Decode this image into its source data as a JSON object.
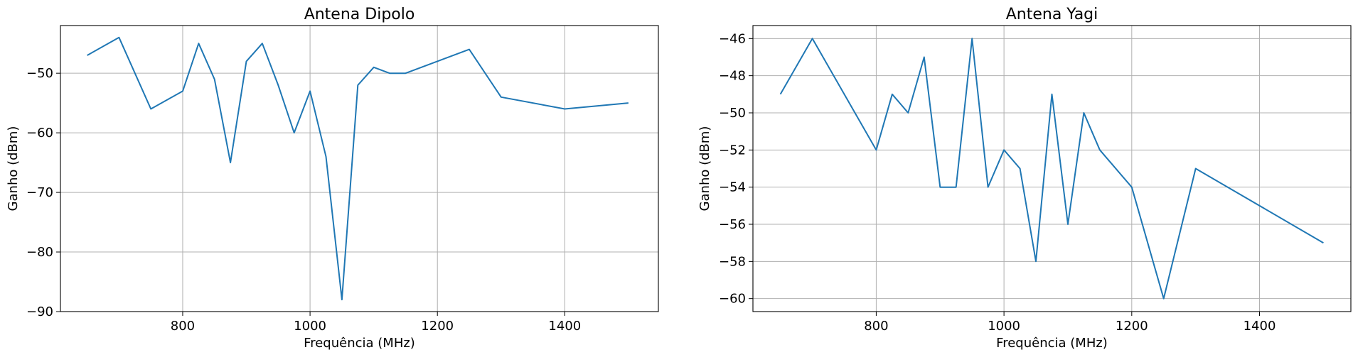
{
  "chart_data": [
    {
      "type": "line",
      "title": "Antena Dipolo",
      "xlabel": "Frequência (MHz)",
      "ylabel": "Ganho (dBm)",
      "xlim": [
        608,
        1547
      ],
      "ylim": [
        -90,
        -42
      ],
      "grid": true,
      "xticks": [
        800,
        1000,
        1200,
        1400
      ],
      "xtick_labels": [
        "800",
        "1000",
        "1200",
        "1400"
      ],
      "yticks": [
        -90,
        -80,
        -70,
        -60,
        -50
      ],
      "ytick_labels": [
        "−90",
        "−80",
        "−70",
        "−60",
        "−50"
      ],
      "series": [
        {
          "color": "#1f77b4",
          "x": [
            650,
            700,
            750,
            800,
            825,
            850,
            875,
            900,
            925,
            950,
            975,
            1000,
            1025,
            1050,
            1075,
            1100,
            1125,
            1150,
            1250,
            1300,
            1400,
            1500
          ],
          "y": [
            -47,
            -44,
            -56,
            -53,
            -45,
            -51,
            -65,
            -48,
            -45,
            -52,
            -60,
            -53,
            -64,
            -88,
            -52,
            -49,
            -50,
            -50,
            -46,
            -54,
            -56,
            -55
          ]
        }
      ]
    },
    {
      "type": "line",
      "title": "Antena Yagi",
      "xlabel": "Frequência (MHz)",
      "ylabel": "Ganho (dBm)",
      "xlim": [
        607,
        1543
      ],
      "ylim": [
        -60.7,
        -45.3
      ],
      "grid": true,
      "xticks": [
        800,
        1000,
        1200,
        1400
      ],
      "xtick_labels": [
        "800",
        "1000",
        "1200",
        "1400"
      ],
      "yticks": [
        -60,
        -58,
        -56,
        -54,
        -52,
        -50,
        -48,
        -46
      ],
      "ytick_labels": [
        "−60",
        "−58",
        "−56",
        "−54",
        "−52",
        "−50",
        "−48",
        "−46"
      ],
      "series": [
        {
          "color": "#1f77b4",
          "x": [
            650,
            700,
            800,
            825,
            850,
            875,
            900,
            925,
            950,
            975,
            1000,
            1025,
            1050,
            1075,
            1100,
            1125,
            1150,
            1200,
            1250,
            1300,
            1500
          ],
          "y": [
            -49,
            -46,
            -52,
            -49,
            -50,
            -47,
            -54,
            -54,
            -46,
            -54,
            -52,
            -53,
            -58,
            -49,
            -56,
            -50,
            -52,
            -54,
            -60,
            -53,
            -57
          ]
        }
      ]
    }
  ]
}
